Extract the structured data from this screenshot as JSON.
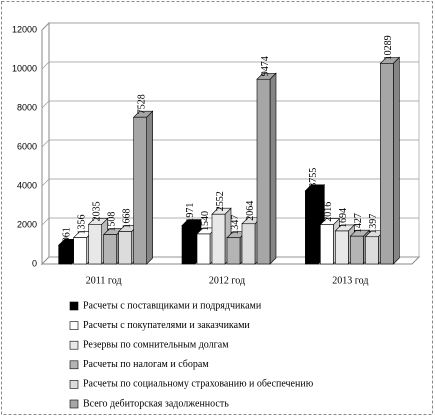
{
  "chart_data": {
    "type": "bar3d",
    "categories": [
      "2011 год",
      "2012 год",
      "2013 год"
    ],
    "series": [
      {
        "name": "Расчеты с поставщиками и подрядчиками",
        "color": "#000000",
        "values": [
          961,
          1971,
          3755
        ]
      },
      {
        "name": "Расчеты с покупателями и заказчиками",
        "color": "#ffffff",
        "values": [
          1356,
          1540,
          2016
        ]
      },
      {
        "name": "Резервы по сомнительным долгам",
        "color": "#e8e8e8",
        "values": [
          2035,
          2552,
          1694
        ]
      },
      {
        "name": "Расчеты по налогам и сборам",
        "color": "#b4b4b4",
        "values": [
          1508,
          1347,
          1427
        ]
      },
      {
        "name": "Расчеты по социальному страхованию и обеспечению",
        "color": "#dcdcdc",
        "values": [
          1668,
          2064,
          1397
        ]
      },
      {
        "name": "Всего дебиторская задолженность",
        "color": "#a6a6a6",
        "values": [
          7528,
          9474,
          10289
        ]
      }
    ],
    "ylim": [
      0,
      12000
    ],
    "yticks": [
      0,
      2000,
      4000,
      6000,
      8000,
      10000,
      12000
    ],
    "grid": true
  }
}
